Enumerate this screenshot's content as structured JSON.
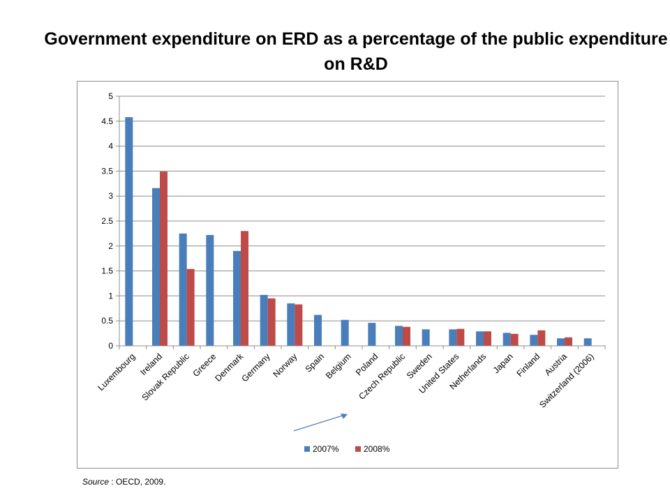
{
  "page": {
    "title": "Government expenditure on ERD as a percentage of the public expenditure on R&D",
    "source_label": "Source",
    "source_text": " : OECD, 2009."
  },
  "colors": {
    "series_2007": "#4a7ebb",
    "series_2008": "#be4b48",
    "gridline": "#8c8c8c",
    "annotation_arrow": "#4f81bd"
  },
  "chart_data": {
    "type": "bar",
    "title": "Government expenditure on ERD as a percentage of the public expenditure on R&D",
    "xlabel": "",
    "ylabel": "",
    "ylim": [
      0,
      5
    ],
    "yticks": [
      0,
      0.5,
      1,
      1.5,
      2,
      2.5,
      3,
      3.5,
      4,
      4.5,
      5
    ],
    "ytick_labels": [
      "0",
      "0.5",
      "1",
      "1.5",
      "2",
      "2.5",
      "3",
      "3.5",
      "4",
      "4.5",
      "5"
    ],
    "grid": true,
    "legend_position": "bottom",
    "categories": [
      "Luxembourg",
      "Ireland",
      "Slovak Republic",
      "Greece",
      "Denmark",
      "Germany",
      "Norway",
      "Spain",
      "Belgium",
      "Poland",
      "Czech Republic",
      "Sweden",
      "United States",
      "Netherlands",
      "Japan",
      "Finland",
      "Austria",
      "Switzerland (2006)"
    ],
    "series": [
      {
        "name": "2007%",
        "values": [
          4.58,
          3.16,
          2.25,
          2.22,
          1.9,
          1.02,
          0.85,
          0.62,
          0.52,
          0.46,
          0.4,
          0.33,
          0.33,
          0.29,
          0.26,
          0.22,
          0.15,
          0.15
        ]
      },
      {
        "name": "2008%",
        "values": [
          null,
          3.49,
          1.54,
          null,
          2.3,
          0.95,
          0.83,
          null,
          null,
          null,
          0.38,
          null,
          0.34,
          0.29,
          0.24,
          0.31,
          0.17,
          null
        ]
      }
    ]
  }
}
